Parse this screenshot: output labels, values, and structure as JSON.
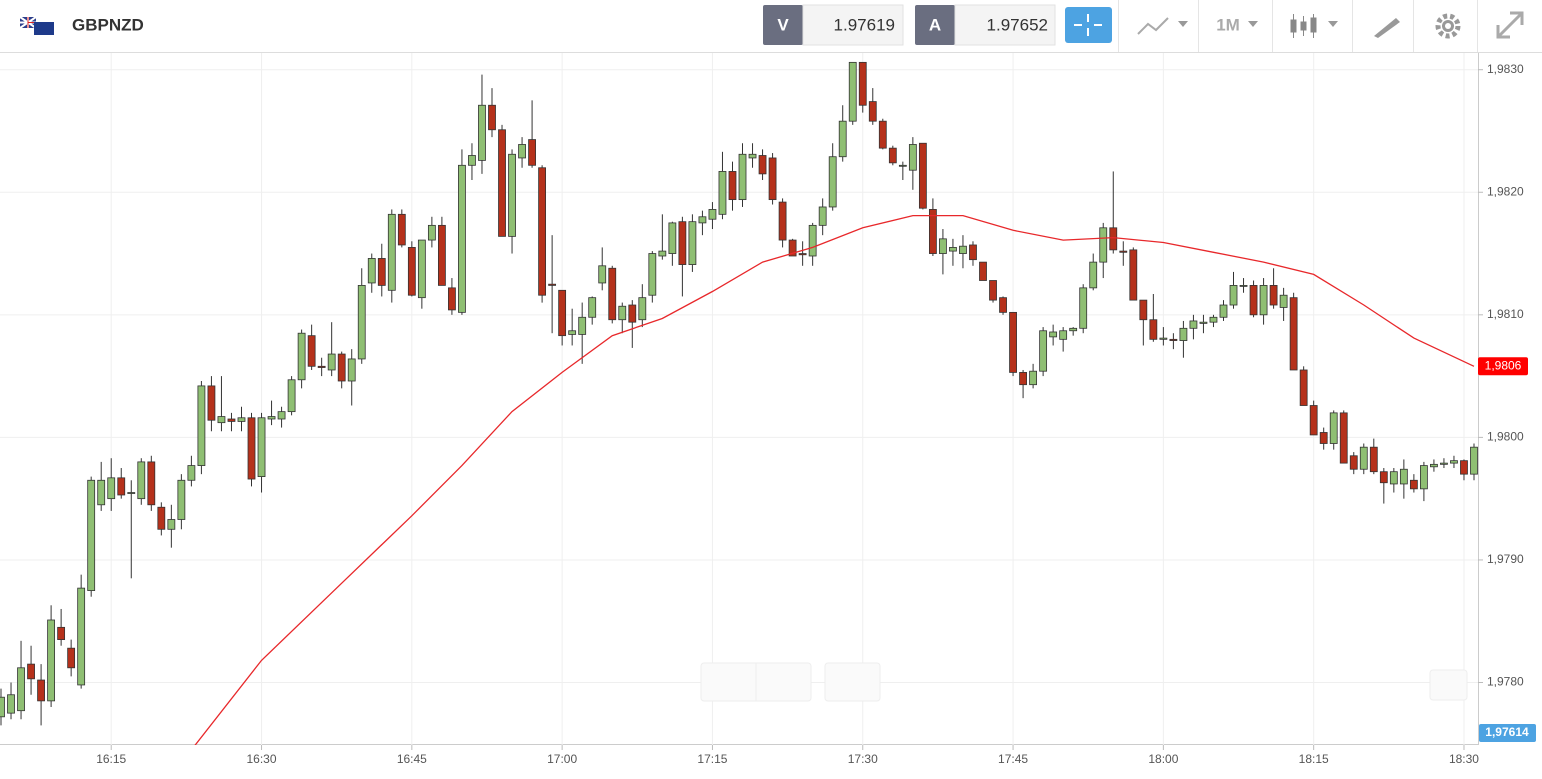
{
  "header": {
    "symbol": "GBPNZD",
    "bid_label": "V",
    "bid": "1.97619",
    "ask_label": "A",
    "ask": "1.97652",
    "timeframe": "1M"
  },
  "chart_data": {
    "type": "candlestick",
    "xlim": [
      "16:04",
      "18:31"
    ],
    "xticks": [
      "16:15",
      "16:30",
      "16:45",
      "17:00",
      "17:15",
      "17:30",
      "17:45",
      "18:00",
      "18:15",
      "18:30"
    ],
    "ylim": [
      1.97749,
      1.98312
    ],
    "yticks": [
      {
        "value": 1.978,
        "label": "1,9780"
      },
      {
        "value": 1.979,
        "label": "1,9790"
      },
      {
        "value": 1.98,
        "label": "1,9800"
      },
      {
        "value": 1.981,
        "label": "1,9810"
      },
      {
        "value": 1.982,
        "label": "1,9820"
      },
      {
        "value": 1.983,
        "label": "1,9830"
      }
    ],
    "grid": true,
    "up_color": "#8fbf73",
    "down_color": "#b5311b",
    "x": [
      "16:04",
      "16:05",
      "16:06",
      "16:07",
      "16:08",
      "16:09",
      "16:10",
      "16:11",
      "16:12",
      "16:13",
      "16:14",
      "16:15",
      "16:16",
      "16:17",
      "16:18",
      "16:19",
      "16:20",
      "16:21",
      "16:22",
      "16:23",
      "16:24",
      "16:25",
      "16:26",
      "16:27",
      "16:28",
      "16:29",
      "16:30",
      "16:31",
      "16:32",
      "16:33",
      "16:34",
      "16:35",
      "16:36",
      "16:37",
      "16:38",
      "16:39",
      "16:40",
      "16:41",
      "16:42",
      "16:43",
      "16:44",
      "16:45",
      "16:46",
      "16:47",
      "16:48",
      "16:49",
      "16:50",
      "16:51",
      "16:52",
      "16:53",
      "16:54",
      "16:55",
      "16:56",
      "16:57",
      "16:58",
      "16:59",
      "17:00",
      "17:01",
      "17:02",
      "17:03",
      "17:04",
      "17:05",
      "17:06",
      "17:07",
      "17:08",
      "17:09",
      "17:10",
      "17:11",
      "17:12",
      "17:13",
      "17:14",
      "17:15",
      "17:16",
      "17:17",
      "17:18",
      "17:19",
      "17:20",
      "17:21",
      "17:22",
      "17:23",
      "17:24",
      "17:25",
      "17:26",
      "17:27",
      "17:28",
      "17:29",
      "17:30",
      "17:31",
      "17:32",
      "17:33",
      "17:34",
      "17:35",
      "17:36",
      "17:37",
      "17:38",
      "17:39",
      "17:40",
      "17:41",
      "17:42",
      "17:43",
      "17:44",
      "17:45",
      "17:46",
      "17:47",
      "17:48",
      "17:49",
      "17:50",
      "17:51",
      "17:52",
      "17:53",
      "17:54",
      "17:55",
      "17:56",
      "17:57",
      "17:58",
      "17:59",
      "18:00",
      "18:01",
      "18:02",
      "18:03",
      "18:04",
      "18:05",
      "18:06",
      "18:07",
      "18:08",
      "18:09",
      "18:10",
      "18:11",
      "18:12",
      "18:13",
      "18:14",
      "18:15",
      "18:16",
      "18:17",
      "18:18",
      "18:19",
      "18:20",
      "18:21",
      "18:22",
      "18:23",
      "18:24",
      "18:25",
      "18:26",
      "18:27",
      "18:28",
      "18:29",
      "18:30",
      "18:31"
    ],
    "candles": [
      [
        1.97772,
        1.97795,
        1.97765,
        1.97788
      ],
      [
        1.97775,
        1.978,
        1.9777,
        1.9779
      ],
      [
        1.97777,
        1.97834,
        1.9777,
        1.97812
      ],
      [
        1.97815,
        1.9783,
        1.9779,
        1.97803
      ],
      [
        1.97802,
        1.97815,
        1.97765,
        1.97785
      ],
      [
        1.97785,
        1.97863,
        1.9778,
        1.97851
      ],
      [
        1.97845,
        1.9786,
        1.9783,
        1.97835
      ],
      [
        1.97828,
        1.97835,
        1.97805,
        1.97812
      ],
      [
        1.97798,
        1.97888,
        1.97795,
        1.97877
      ],
      [
        1.97875,
        1.97968,
        1.9787,
        1.97965
      ],
      [
        1.97945,
        1.9798,
        1.9794,
        1.97965
      ],
      [
        1.9795,
        1.97983,
        1.9794,
        1.97967
      ],
      [
        1.97967,
        1.97975,
        1.9795,
        1.97953
      ],
      [
        1.97955,
        1.97965,
        1.97885,
        1.97955
      ],
      [
        1.9795,
        1.97983,
        1.97945,
        1.9798
      ],
      [
        1.9798,
        1.97985,
        1.9794,
        1.97945
      ],
      [
        1.97943,
        1.97947,
        1.9792,
        1.97925
      ],
      [
        1.97925,
        1.97945,
        1.9791,
        1.97933
      ],
      [
        1.97933,
        1.9797,
        1.97925,
        1.97965
      ],
      [
        1.97965,
        1.97985,
        1.9796,
        1.97977
      ],
      [
        1.97977,
        1.98046,
        1.9797,
        1.98042
      ],
      [
        1.98042,
        1.9805,
        1.98005,
        1.98014
      ],
      [
        1.98012,
        1.9805,
        1.98005,
        1.98017
      ],
      [
        1.98015,
        1.9802,
        1.98005,
        1.98013
      ],
      [
        1.98013,
        1.98025,
        1.98005,
        1.98016
      ],
      [
        1.98016,
        1.9802,
        1.9796,
        1.97966
      ],
      [
        1.97968,
        1.9802,
        1.97955,
        1.98016
      ],
      [
        1.98015,
        1.9803,
        1.9801,
        1.98017
      ],
      [
        1.98015,
        1.98025,
        1.98008,
        1.98021
      ],
      [
        1.98021,
        1.9805,
        1.98018,
        1.98047
      ],
      [
        1.98047,
        1.98088,
        1.9804,
        1.98085
      ],
      [
        1.98083,
        1.98092,
        1.98055,
        1.98058
      ],
      [
        1.98058,
        1.98065,
        1.9805,
        1.98057
      ],
      [
        1.98055,
        1.98094,
        1.9805,
        1.98068
      ],
      [
        1.98068,
        1.9807,
        1.9804,
        1.98046
      ],
      [
        1.98046,
        1.98072,
        1.98026,
        1.98064
      ],
      [
        1.98064,
        1.98138,
        1.9806,
        1.98124
      ],
      [
        1.98126,
        1.9815,
        1.98118,
        1.98146
      ],
      [
        1.98146,
        1.98158,
        1.98115,
        1.98124
      ],
      [
        1.9812,
        1.98186,
        1.9811,
        1.98182
      ],
      [
        1.98182,
        1.98186,
        1.98155,
        1.98157
      ],
      [
        1.98155,
        1.9816,
        1.98115,
        1.98116
      ],
      [
        1.98114,
        1.9816,
        1.98105,
        1.98161
      ],
      [
        1.98161,
        1.9818,
        1.98155,
        1.98173
      ],
      [
        1.98173,
        1.9818,
        1.98125,
        1.98124
      ],
      [
        1.98122,
        1.9813,
        1.981,
        1.98104
      ],
      [
        1.98102,
        1.98235,
        1.981,
        1.98222
      ],
      [
        1.98222,
        1.9824,
        1.9821,
        1.9823
      ],
      [
        1.98226,
        1.98296,
        1.98215,
        1.98271
      ],
      [
        1.98271,
        1.98285,
        1.98245,
        1.98251
      ],
      [
        1.98251,
        1.98255,
        1.98164,
        1.98164
      ],
      [
        1.98164,
        1.98235,
        1.9815,
        1.98231
      ],
      [
        1.98228,
        1.98245,
        1.9822,
        1.98239
      ],
      [
        1.98243,
        1.98275,
        1.9822,
        1.98222
      ],
      [
        1.9822,
        1.98222,
        1.9811,
        1.98116
      ],
      [
        1.98125,
        1.98165,
        1.98085,
        1.98124
      ],
      [
        1.9812,
        1.9812,
        1.98075,
        1.98083
      ],
      [
        1.98084,
        1.98105,
        1.98075,
        1.98087
      ],
      [
        1.98084,
        1.9811,
        1.9806,
        1.98098
      ],
      [
        1.98098,
        1.98115,
        1.98092,
        1.98114
      ],
      [
        1.98126,
        1.98155,
        1.9812,
        1.9814
      ],
      [
        1.98138,
        1.9814,
        1.98093,
        1.98096
      ],
      [
        1.98096,
        1.9811,
        1.98085,
        1.98107
      ],
      [
        1.98108,
        1.98112,
        1.98073,
        1.98094
      ],
      [
        1.98096,
        1.98125,
        1.9809,
        1.98114
      ],
      [
        1.98116,
        1.98152,
        1.9811,
        1.9815
      ],
      [
        1.98148,
        1.98182,
        1.98145,
        1.98152
      ],
      [
        1.9815,
        1.98176,
        1.9814,
        1.98175
      ],
      [
        1.98176,
        1.9818,
        1.98115,
        1.98141
      ],
      [
        1.98141,
        1.98182,
        1.98135,
        1.98176
      ],
      [
        1.98175,
        1.98185,
        1.98165,
        1.9818
      ],
      [
        1.98178,
        1.98192,
        1.9817,
        1.98186
      ],
      [
        1.98182,
        1.98233,
        1.98178,
        1.98217
      ],
      [
        1.98217,
        1.98225,
        1.98185,
        1.98194
      ],
      [
        1.98194,
        1.9824,
        1.98188,
        1.98231
      ],
      [
        1.98228,
        1.9824,
        1.9822,
        1.98231
      ],
      [
        1.9823,
        1.98235,
        1.9821,
        1.98215
      ],
      [
        1.98228,
        1.98232,
        1.9819,
        1.98194
      ],
      [
        1.98192,
        1.98195,
        1.98155,
        1.98161
      ],
      [
        1.98161,
        1.98162,
        1.98148,
        1.98148
      ],
      [
        1.9815,
        1.9816,
        1.9814,
        1.98149
      ],
      [
        1.98148,
        1.98175,
        1.9814,
        1.98173
      ],
      [
        1.98173,
        1.98195,
        1.98165,
        1.98188
      ],
      [
        1.98188,
        1.9824,
        1.98185,
        1.98229
      ],
      [
        1.98229,
        1.98271,
        1.98225,
        1.98258
      ],
      [
        1.98258,
        1.98306,
        1.98255,
        1.98306
      ],
      [
        1.98306,
        1.98306,
        1.98265,
        1.98271
      ],
      [
        1.98274,
        1.98285,
        1.98255,
        1.98258
      ],
      [
        1.98258,
        1.9826,
        1.98235,
        1.98236
      ],
      [
        1.98236,
        1.98238,
        1.98222,
        1.98224
      ],
      [
        1.98222,
        1.98225,
        1.9821,
        1.98222
      ],
      [
        1.98218,
        1.98245,
        1.98202,
        1.98239
      ],
      [
        1.9824,
        1.9824,
        1.98186,
        1.98187
      ],
      [
        1.98186,
        1.98195,
        1.98148,
        1.9815
      ],
      [
        1.9815,
        1.9817,
        1.98133,
        1.98162
      ],
      [
        1.98152,
        1.98162,
        1.9814,
        1.98155
      ],
      [
        1.9815,
        1.98165,
        1.98138,
        1.98156
      ],
      [
        1.98157,
        1.9816,
        1.9814,
        1.98145
      ],
      [
        1.98143,
        1.98143,
        1.98128,
        1.98128
      ],
      [
        1.98128,
        1.98128,
        1.9811,
        1.98112
      ],
      [
        1.98114,
        1.98115,
        1.981,
        1.98102
      ],
      [
        1.98102,
        1.98102,
        1.9805,
        1.98053
      ],
      [
        1.98053,
        1.98055,
        1.98032,
        1.98043
      ],
      [
        1.98043,
        1.9806,
        1.9804,
        1.98054
      ],
      [
        1.98054,
        1.9809,
        1.9805,
        1.98087
      ],
      [
        1.98082,
        1.98092,
        1.98075,
        1.98086
      ],
      [
        1.9808,
        1.9809,
        1.9807,
        1.98087
      ],
      [
        1.98087,
        1.9809,
        1.98083,
        1.98089
      ],
      [
        1.98089,
        1.98125,
        1.98085,
        1.98122
      ],
      [
        1.98122,
        1.9815,
        1.9812,
        1.98143
      ],
      [
        1.98143,
        1.98175,
        1.9813,
        1.98171
      ],
      [
        1.98171,
        1.98217,
        1.9815,
        1.98153
      ],
      [
        1.98152,
        1.9816,
        1.9814,
        1.98151
      ],
      [
        1.98153,
        1.98155,
        1.98112,
        1.98112
      ],
      [
        1.98112,
        1.98112,
        1.98075,
        1.98096
      ],
      [
        1.98096,
        1.98117,
        1.98078,
        1.9808
      ],
      [
        1.9808,
        1.9809,
        1.98075,
        1.98081
      ],
      [
        1.9808,
        1.98085,
        1.98072,
        1.98079
      ],
      [
        1.98079,
        1.98095,
        1.98065,
        1.98089
      ],
      [
        1.98089,
        1.981,
        1.9808,
        1.98095
      ],
      [
        1.98093,
        1.981,
        1.98085,
        1.98094
      ],
      [
        1.98094,
        1.981,
        1.9809,
        1.98098
      ],
      [
        1.98098,
        1.98112,
        1.98095,
        1.98108
      ],
      [
        1.98108,
        1.98135,
        1.98105,
        1.98124
      ],
      [
        1.98124,
        1.9813,
        1.98118,
        1.98124
      ],
      [
        1.98124,
        1.98128,
        1.98098,
        1.981
      ],
      [
        1.981,
        1.9813,
        1.98092,
        1.98124
      ],
      [
        1.98124,
        1.98138,
        1.98105,
        1.98108
      ],
      [
        1.98106,
        1.98122,
        1.98095,
        1.98116
      ],
      [
        1.98114,
        1.98118,
        1.98055,
        1.98055
      ],
      [
        1.98055,
        1.98058,
        1.98026,
        1.98026
      ],
      [
        1.98026,
        1.9803,
        1.98002,
        1.98002
      ],
      [
        1.98004,
        1.98008,
        1.9799,
        1.97995
      ],
      [
        1.97995,
        1.98022,
        1.9799,
        1.9802
      ],
      [
        1.9802,
        1.98022,
        1.97979,
        1.97979
      ],
      [
        1.97985,
        1.97988,
        1.9797,
        1.97974
      ],
      [
        1.97974,
        1.97995,
        1.9797,
        1.97992
      ],
      [
        1.97992,
        1.97999,
        1.9797,
        1.97972
      ],
      [
        1.97972,
        1.97975,
        1.97946,
        1.97963
      ],
      [
        1.97962,
        1.97975,
        1.97955,
        1.97972
      ],
      [
        1.97962,
        1.97982,
        1.9795,
        1.97974
      ],
      [
        1.97965,
        1.9797,
        1.97955,
        1.97958
      ],
      [
        1.97958,
        1.9798,
        1.97948,
        1.97977
      ],
      [
        1.97976,
        1.97982,
        1.97972,
        1.97978
      ],
      [
        1.97978,
        1.97983,
        1.97975,
        1.97979
      ],
      [
        1.97979,
        1.97985,
        1.97975,
        1.97981
      ],
      [
        1.97981,
        1.97982,
        1.97965,
        1.9797
      ],
      [
        1.9797,
        1.97995,
        1.97965,
        1.97992
      ]
    ],
    "moving_average": {
      "color": "#e8282b",
      "x": [
        "16:23",
        "16:30",
        "16:38",
        "16:45",
        "16:50",
        "16:55",
        "17:00",
        "17:05",
        "17:10",
        "17:15",
        "17:20",
        "17:25",
        "17:30",
        "17:35",
        "17:40",
        "17:45",
        "17:50",
        "17:55",
        "18:00",
        "18:05",
        "18:10",
        "18:15",
        "18:20",
        "18:25",
        "18:31"
      ],
      "values": [
        1.97745,
        1.97818,
        1.97881,
        1.97936,
        1.97977,
        1.98021,
        1.98053,
        1.98083,
        1.98097,
        1.98119,
        1.98143,
        1.98155,
        1.98171,
        1.98181,
        1.98181,
        1.98169,
        1.98161,
        1.98163,
        1.98159,
        1.98151,
        1.98143,
        1.98133,
        1.98108,
        1.98081,
        1.98058
      ]
    },
    "ma_value_label": "1,9806",
    "price_label": "1,97614"
  }
}
